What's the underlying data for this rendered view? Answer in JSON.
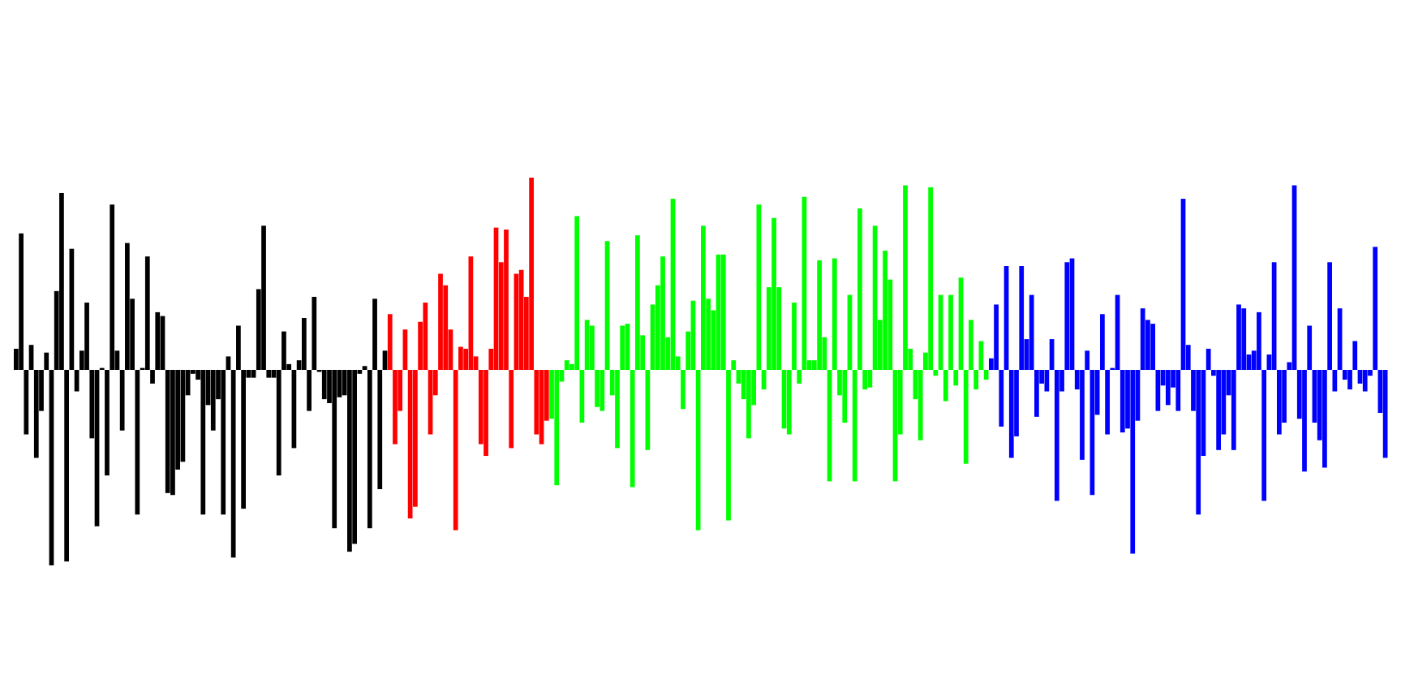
{
  "chart_data": {
    "type": "bar",
    "title": "",
    "xlabel": "",
    "ylabel": "",
    "ylim": [
      -1.0,
      1.0
    ],
    "grid": false,
    "legend": "none",
    "series": [
      {
        "color": "#000000",
        "values": [
          0.11,
          0.71,
          -0.33,
          0.13,
          -0.45,
          -0.21,
          0.09,
          -1.0,
          0.41,
          0.92,
          -0.98,
          0.63,
          -0.11,
          0.1,
          0.35,
          -0.35,
          -0.8,
          0.01,
          -0.54,
          0.86,
          0.1,
          -0.31,
          0.66,
          0.37,
          -0.74,
          0.01,
          0.59,
          -0.07,
          0.3,
          0.28,
          -0.63,
          -0.64,
          -0.51,
          -0.47,
          -0.13,
          -0.02,
          -0.05,
          -0.74,
          -0.18,
          -0.31,
          -0.15,
          -0.74,
          0.07,
          -0.96,
          0.23,
          -0.71,
          -0.04,
          -0.04,
          0.42,
          0.75,
          -0.04,
          -0.04,
          -0.54,
          0.2,
          0.03,
          -0.4,
          0.05,
          0.27,
          -0.21,
          0.38,
          -0.01,
          -0.15,
          -0.17,
          -0.81,
          -0.14,
          -0.13,
          -0.93,
          -0.89,
          -0.02,
          0.02,
          -0.81,
          0.37,
          -0.61,
          0.1
        ]
      },
      {
        "color": "#ff0000",
        "values": [
          0.29,
          -0.38,
          -0.21,
          0.21,
          -0.76,
          -0.7,
          0.25,
          0.35,
          -0.33,
          -0.13,
          0.5,
          0.44,
          0.21,
          -0.82,
          0.12,
          0.11,
          0.59,
          0.07,
          -0.38,
          -0.44,
          0.11,
          0.74,
          0.56,
          0.73,
          -0.4,
          0.5,
          0.52,
          0.38,
          1.0,
          -0.33,
          -0.38,
          -0.26
        ]
      },
      {
        "color": "#00ff00",
        "values": [
          -0.25,
          -0.59,
          -0.06,
          0.05,
          0.03,
          0.8,
          -0.27,
          0.26,
          0.23,
          -0.19,
          -0.21,
          0.67,
          -0.13,
          -0.4,
          0.23,
          0.24,
          -0.6,
          0.7,
          0.18,
          -0.41,
          0.34,
          0.44,
          0.59,
          0.17,
          0.89,
          0.07,
          -0.2,
          0.2,
          0.36,
          -0.82,
          0.75,
          0.37,
          0.31,
          0.6,
          0.6,
          -0.77,
          0.05,
          -0.07,
          -0.15,
          -0.35,
          -0.18,
          0.86,
          -0.1,
          0.43,
          0.79,
          0.43,
          -0.3,
          -0.33,
          0.35,
          -0.07,
          0.9,
          0.05,
          0.05,
          0.57,
          0.17,
          -0.57,
          0.58,
          -0.13,
          -0.27,
          0.39,
          -0.57,
          0.84,
          -0.1,
          -0.09,
          0.75,
          0.26,
          0.62,
          0.47,
          -0.57,
          -0.33,
          0.96,
          0.11,
          -0.15,
          -0.36,
          0.09,
          0.95,
          -0.03,
          0.39,
          -0.16,
          0.39,
          -0.08,
          0.48,
          -0.48,
          0.26,
          -0.1,
          0.15,
          -0.05
        ]
      },
      {
        "color": "#0000ff",
        "values": [
          0.06,
          0.34,
          -0.29,
          0.54,
          -0.45,
          -0.34,
          0.54,
          0.16,
          0.39,
          -0.24,
          -0.07,
          -0.11,
          0.16,
          -0.67,
          -0.11,
          0.56,
          0.58,
          -0.1,
          -0.46,
          0.1,
          -0.64,
          -0.23,
          0.29,
          -0.33,
          0.01,
          0.39,
          -0.32,
          -0.3,
          -0.94,
          -0.26,
          0.32,
          0.26,
          0.24,
          -0.21,
          -0.08,
          -0.18,
          -0.09,
          -0.21,
          0.89,
          0.13,
          -0.21,
          -0.74,
          -0.44,
          0.11,
          -0.03,
          -0.41,
          -0.33,
          -0.13,
          -0.41,
          0.34,
          0.32,
          0.08,
          0.1,
          0.3,
          -0.67,
          0.08,
          0.56,
          -0.33,
          -0.27,
          0.04,
          0.96,
          -0.25,
          -0.52,
          0.23,
          -0.27,
          -0.36,
          -0.5,
          0.56,
          -0.11,
          0.32,
          -0.05,
          -0.1,
          0.15,
          -0.07,
          -0.11,
          -0.03,
          0.64,
          -0.22,
          -0.45
        ]
      }
    ]
  }
}
